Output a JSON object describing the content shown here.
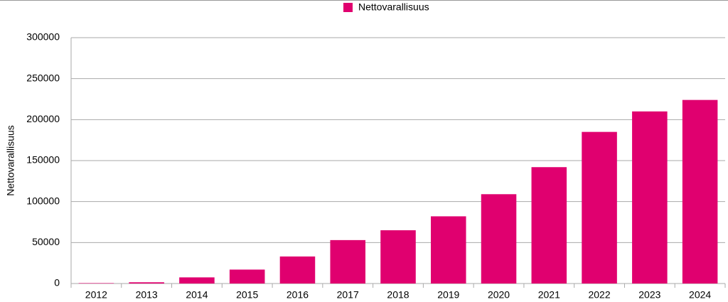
{
  "chart_data": {
    "type": "bar",
    "y_label": "Nettovarallisuus",
    "categories": [
      "2012",
      "2013",
      "2014",
      "2015",
      "2016",
      "2017",
      "2018",
      "2019",
      "2020",
      "2021",
      "2022",
      "2023",
      "2024"
    ],
    "series": [
      {
        "name": "Nettovarallisuus",
        "color": "#e0006f",
        "values": [
          500,
          1500,
          7500,
          17000,
          33000,
          53000,
          65000,
          82000,
          109000,
          142000,
          185000,
          210000,
          224000
        ]
      }
    ],
    "ylim": [
      0,
      300000
    ],
    "yticks": [
      0,
      50000,
      100000,
      150000,
      200000,
      250000,
      300000
    ],
    "grid": true
  }
}
